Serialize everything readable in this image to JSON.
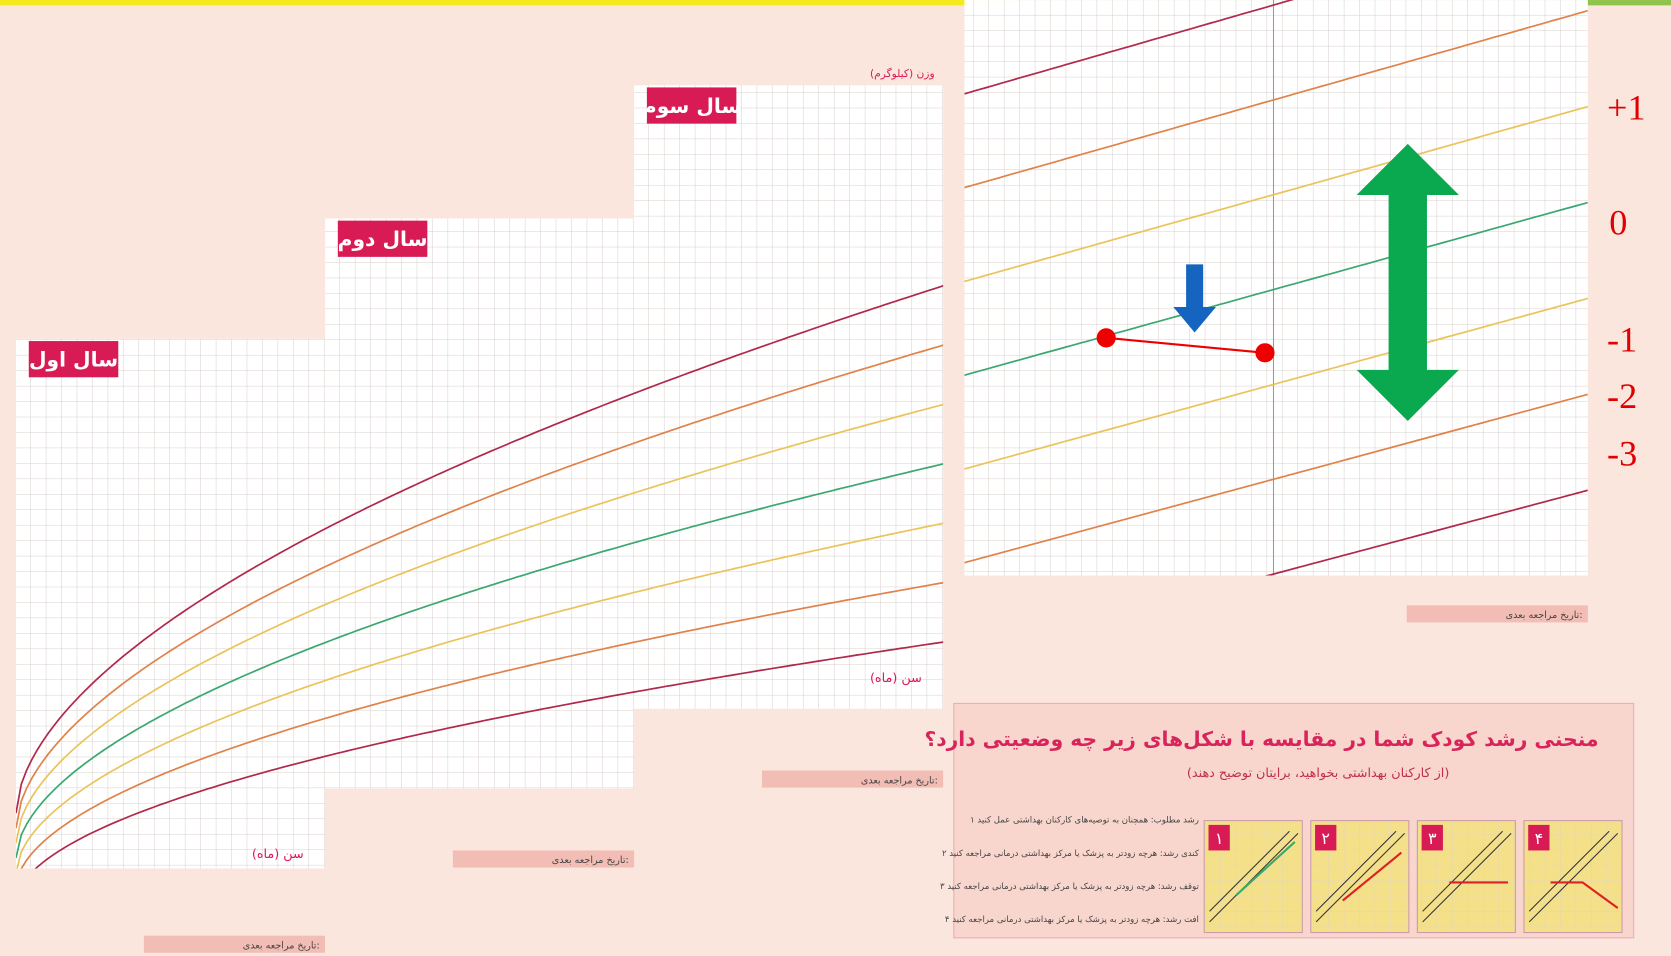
{
  "panels": [
    {
      "title": "سال اول",
      "age_label": "سن (ماه)",
      "next_visit": "تاریخ مراجعه بعدی:"
    },
    {
      "title": "سال دوم",
      "next_visit": "تاریخ مراجعه بعدی:"
    },
    {
      "title": "سال سوم",
      "age_label": "سن (ماه)",
      "weight_label": "وزن (کیلوگرم)",
      "next_visit": "تاریخ مراجعه بعدی:"
    },
    {
      "next_visit": "تاریخ مراجعه بعدی:"
    }
  ],
  "z_labels": [
    "+1",
    "0",
    "-1",
    "-2",
    "-3"
  ],
  "guide": {
    "title": "منحنی رشد کودک شما در مقایسه  با شکل‌های زیر چه وضعیتی دارد؟",
    "subtitle": "(از کارکنان بهداشتی بخواهید، برایتان توضیح دهند)",
    "items": [
      "۱ رشد مطلوب: همچنان به توصیه‌های کارکنان بهداشتی عمل کنید",
      "۲ کندی رشد: هرچه زودتر به پزشک یا مرکز بهداشتی درمانی مراجعه کنید",
      "۳ توقف رشد: هرچه زودتر به پزشک یا مرکز بهداشتی درمانی مراجعه کنید",
      "۴ افت رشد: هرچه زودتر به پزشک یا مرکز بهداشتی درمانی مراجعه کنید"
    ],
    "panel_numbers": [
      "۱",
      "۲",
      "۳",
      "۴"
    ]
  }
}
